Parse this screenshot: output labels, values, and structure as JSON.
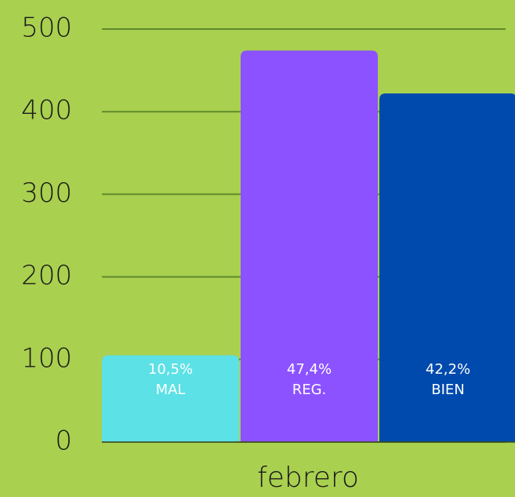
{
  "chart_data": {
    "type": "bar",
    "categories": [
      "febrero"
    ],
    "series": [
      {
        "name": "MAL",
        "color": "#5ce1e6",
        "values": [
          105
        ],
        "percent_label": "10,5%"
      },
      {
        "name": "REG.",
        "color": "#8c52ff",
        "values": [
          474
        ],
        "percent_label": "47,4%"
      },
      {
        "name": "BIEN",
        "color": "#004aad",
        "values": [
          422
        ],
        "percent_label": "42,2%"
      }
    ],
    "ylim": [
      0,
      500
    ],
    "yticks": [
      0,
      100,
      200,
      300,
      400,
      500
    ],
    "grid": true,
    "background": "#a9d04f",
    "grid_color": "#5f8a2c"
  }
}
